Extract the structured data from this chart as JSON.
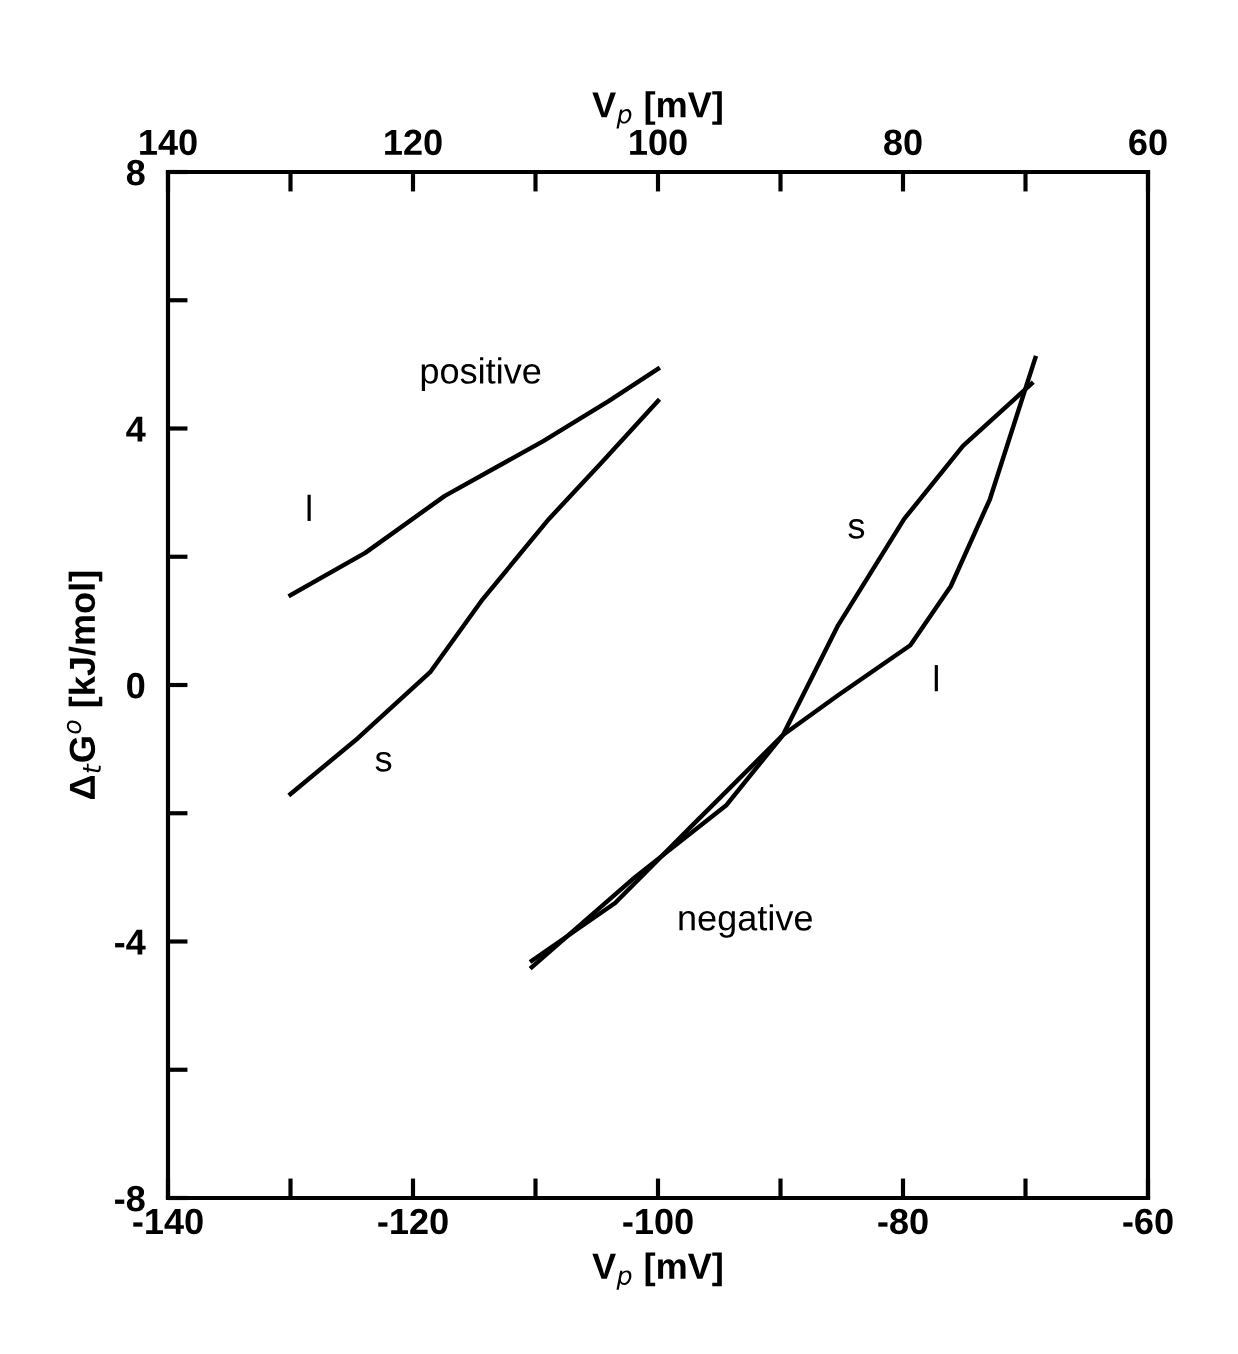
{
  "chart_data": {
    "type": "line",
    "xlabel": "V$_{p}$ [mV]",
    "x2label": "V$_{p}$ [mV]",
    "ylabel": "Δ$_{t}$G$^{o}$ [kJ/mol]",
    "xlim": [
      -140,
      -60
    ],
    "xticks": [
      -140,
      {
        "value": -130,
        "label": null
      },
      -120,
      {
        "value": -110,
        "label": null
      },
      -100,
      {
        "value": -90,
        "label": null
      },
      -80,
      {
        "value": -70,
        "label": null
      },
      -60
    ],
    "x2lim": [
      140,
      60
    ],
    "x2ticks": [
      140,
      {
        "value": 130,
        "label": null
      },
      120,
      {
        "value": 110,
        "label": null
      },
      100,
      {
        "value": 90,
        "label": null
      },
      80,
      {
        "value": 70,
        "label": null
      },
      60
    ],
    "ylim": [
      -8,
      8
    ],
    "yticks": [
      -8,
      {
        "value": -6,
        "label": null
      },
      -4,
      {
        "value": -2,
        "label": null
      },
      0,
      {
        "value": 2,
        "label": null
      },
      4,
      {
        "value": 6,
        "label": null
      },
      8
    ],
    "grid": false,
    "legend": false,
    "marker": "none",
    "line_style": "solid",
    "series": [
      {
        "name": "l",
        "color": "#000000",
        "x": [
          -130,
          -123.9,
          -117.4,
          -109.4,
          -104,
          -100
        ],
        "values": [
          1.4,
          2.06,
          2.95,
          3.8,
          4.43,
          4.93
        ]
      },
      {
        "name": "s",
        "color": "#000000",
        "x": [
          -130,
          -124.5,
          -118.6,
          -114.3,
          -108.9,
          -104.6,
          -100
        ],
        "values": [
          -1.7,
          -0.83,
          0.2,
          1.34,
          2.59,
          3.47,
          4.43
        ]
      },
      {
        "name": "s",
        "color": "#000000",
        "x": [
          -110.3,
          -101.9,
          -94.4,
          -89.8,
          -85.3,
          -79.9,
          -75.1,
          -69.5
        ],
        "values": [
          -4.4,
          -3.0,
          -1.87,
          -0.78,
          0.93,
          2.59,
          3.73,
          4.7
        ]
      },
      {
        "name": "l",
        "color": "#000000",
        "x": [
          -110.3,
          -103.5,
          -97.1,
          -89.8,
          -85.3,
          -79.4,
          -76.1,
          -72.9,
          -69.2
        ],
        "values": [
          -4.3,
          -3.4,
          -2.17,
          -0.78,
          -0.16,
          0.62,
          1.54,
          2.9,
          5.1
        ]
      }
    ],
    "annotations": [
      "positive",
      "negative"
    ]
  }
}
